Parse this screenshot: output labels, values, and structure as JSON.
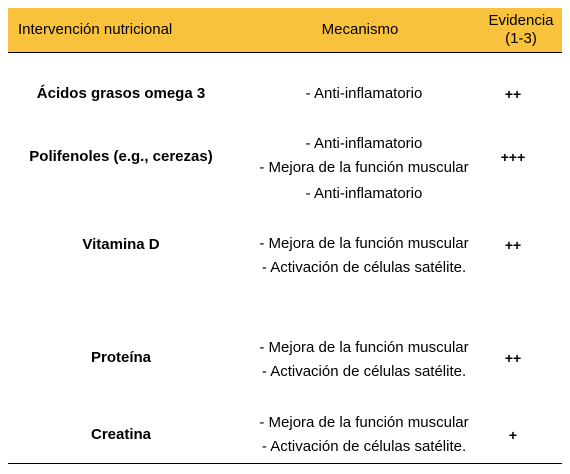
{
  "header": {
    "intervention": "Intervención nutricional",
    "mechanism": "Mecanismo",
    "evidence_line1": "Evidencia",
    "evidence_line2": "(1-3)"
  },
  "rows": [
    {
      "name": "Ácidos grasos omega 3",
      "mechanisms": [
        "- Anti-inflamatorio"
      ],
      "evidence": "++"
    },
    {
      "name": "Polifenoles (e.g., cerezas)",
      "mechanisms": [
        "- Anti-inflamatorio",
        "- Mejora de la función muscular"
      ],
      "evidence": "+++"
    },
    {
      "name": "Vitamina D",
      "mechanisms": [
        "- Anti-inflamatorio",
        "- Mejora de la función muscular",
        "- Activación de células satélite."
      ],
      "evidence": "++"
    },
    {
      "name": "Proteína",
      "mechanisms": [
        "- Mejora de la función muscular",
        "- Activación de células satélite."
      ],
      "evidence": "++"
    },
    {
      "name": "Creatina",
      "mechanisms": [
        "- Mejora de la función muscular",
        "- Activación de células satélite."
      ],
      "evidence": "+"
    }
  ]
}
